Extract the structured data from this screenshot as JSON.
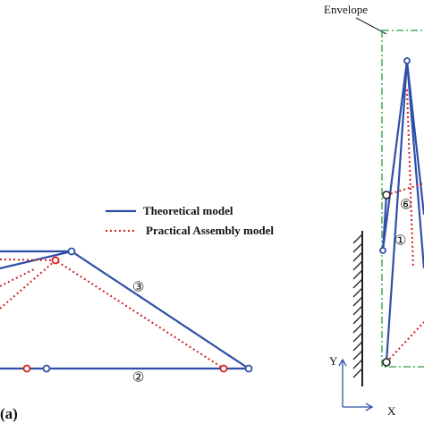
{
  "legend": {
    "theoretical": "Theoretical model",
    "practical": "Practical Assembly model"
  },
  "left": {
    "link3": "③",
    "link2": "②",
    "caption": "(a)"
  },
  "right": {
    "envelope": "Envelope",
    "link6": "⑥",
    "link1": "①",
    "axis_y": "Y",
    "axis_x": "X"
  }
}
